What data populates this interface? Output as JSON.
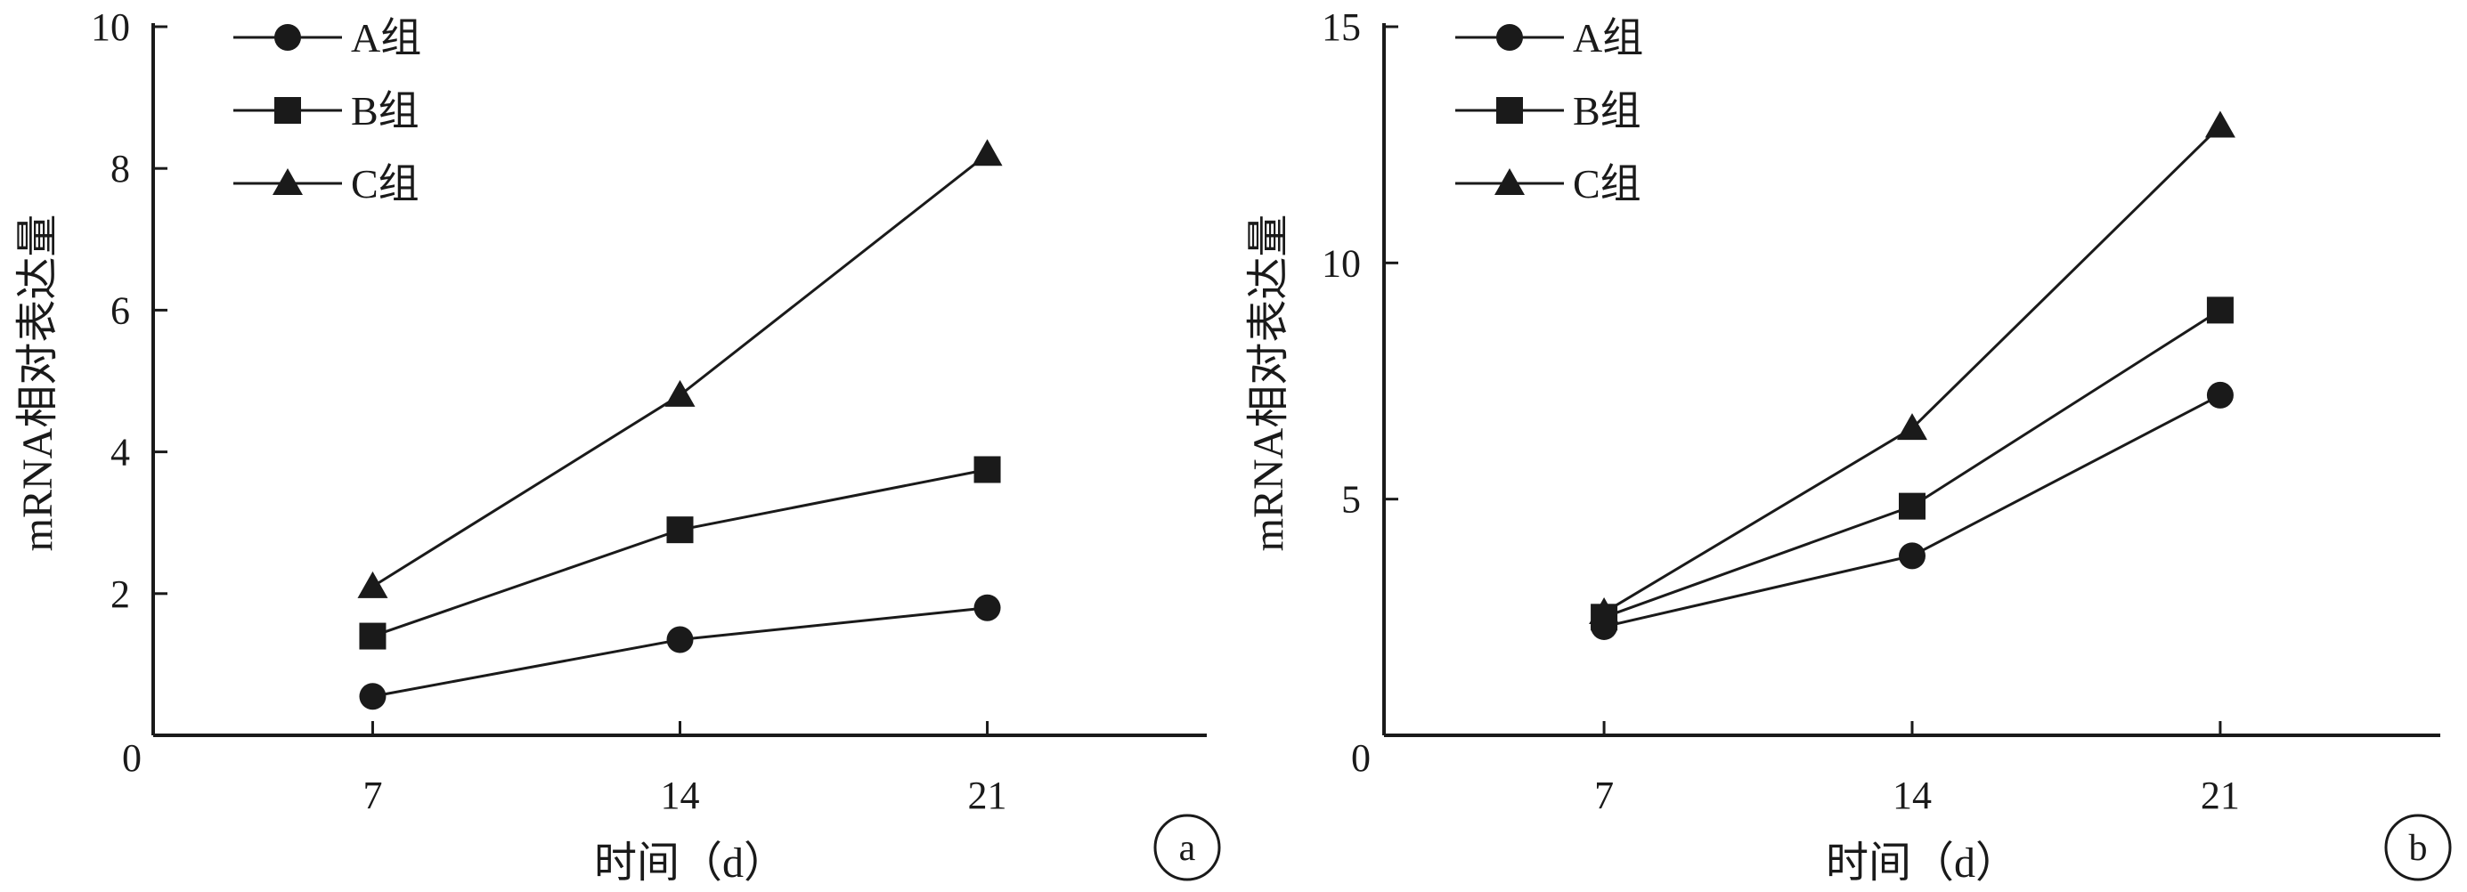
{
  "chart_data": [
    {
      "panel_label": "a",
      "type": "line",
      "xlabel": "时间（d）",
      "ylabel": "mRNA相对表达量",
      "x": [
        7,
        14,
        21
      ],
      "xticks": [
        "7",
        "14",
        "21"
      ],
      "yticks": [
        "0",
        "2",
        "4",
        "6",
        "8",
        "10"
      ],
      "ylim": [
        0,
        10
      ],
      "series": [
        {
          "name": "A组",
          "marker": "circle",
          "values": [
            0.55,
            1.35,
            1.8
          ]
        },
        {
          "name": "B组",
          "marker": "square",
          "values": [
            1.4,
            2.9,
            3.75
          ]
        },
        {
          "name": "C组",
          "marker": "triangle",
          "values": [
            2.1,
            4.8,
            8.2
          ]
        }
      ],
      "legend": "top-left",
      "grid": false
    },
    {
      "panel_label": "b",
      "type": "line",
      "xlabel": "时间（d）",
      "ylabel": "mRNA相对表达量",
      "x": [
        7,
        14,
        21
      ],
      "xticks": [
        "7",
        "14",
        "21"
      ],
      "yticks": [
        "0",
        "5",
        "10",
        "15"
      ],
      "ylim": [
        0,
        15
      ],
      "series": [
        {
          "name": "A组",
          "marker": "circle",
          "values": [
            2.3,
            3.8,
            7.2
          ]
        },
        {
          "name": "B组",
          "marker": "square",
          "values": [
            2.5,
            4.85,
            9.0
          ]
        },
        {
          "name": "C组",
          "marker": "triangle",
          "values": [
            2.6,
            6.5,
            12.9
          ]
        }
      ],
      "legend": "top-left",
      "grid": false
    }
  ],
  "colors": {
    "ink": "#1a1a1a",
    "background": "#ffffff"
  }
}
